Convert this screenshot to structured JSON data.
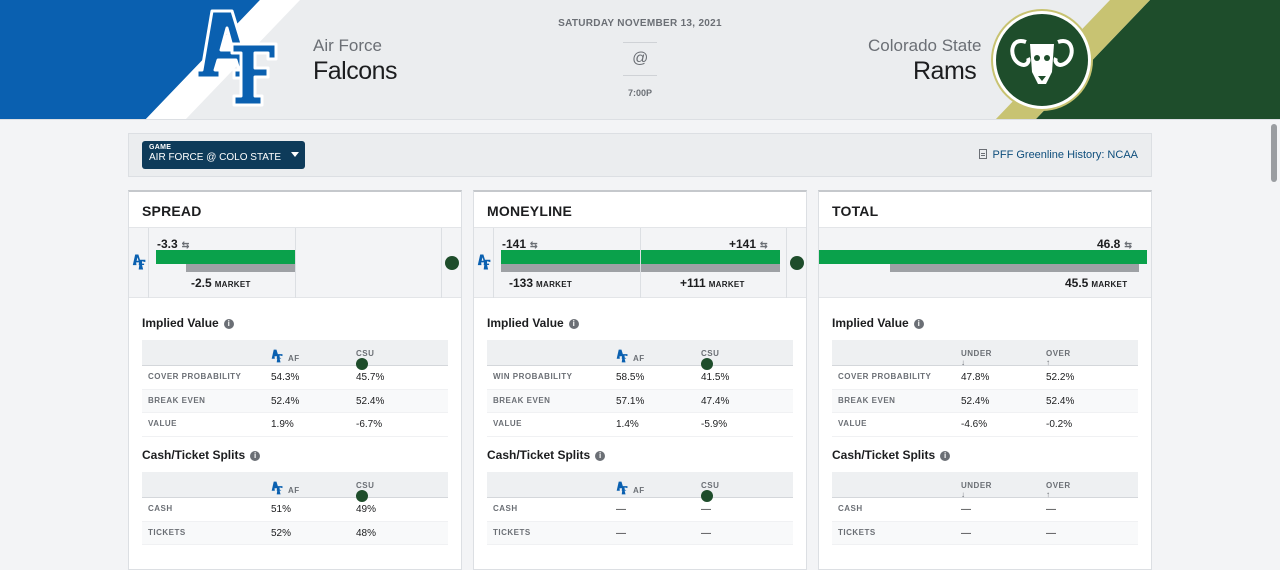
{
  "header": {
    "date": "SATURDAY NOVEMBER 13, 2021",
    "at": "@",
    "time": "7:00P",
    "away": {
      "city": "Air Force",
      "name": "Falcons"
    },
    "home": {
      "city": "Colorado State",
      "name": "Rams"
    },
    "colors": {
      "af_blue": "#0a60b0",
      "csu_green": "#1e4d2b",
      "csu_gold": "#c8c372"
    }
  },
  "toolbar": {
    "game_label": "GAME",
    "game_value": "AIR FORCE @ COLO STATE",
    "history_link": "PFF Greenline History: NCAA"
  },
  "panels": {
    "spread": {
      "title": "SPREAD",
      "line": "-3.3",
      "market": "-2.5",
      "market_label": "MARKET",
      "implied_title": "Implied Value",
      "col1": "AF",
      "col2": "CSU",
      "rows": [
        {
          "label": "COVER PROBABILITY",
          "v1": "54.3%",
          "v2": "45.7%"
        },
        {
          "label": "BREAK EVEN",
          "v1": "52.4%",
          "v2": "52.4%"
        },
        {
          "label": "VALUE",
          "v1": "1.9%",
          "v2": "-6.7%"
        }
      ],
      "splits_title": "Cash/Ticket Splits",
      "splits": [
        {
          "label": "CASH",
          "v1": "51%",
          "v2": "49%"
        },
        {
          "label": "TICKETS",
          "v1": "52%",
          "v2": "48%"
        }
      ]
    },
    "moneyline": {
      "title": "MONEYLINE",
      "line_away": "-141",
      "line_home": "+141",
      "market_away": "-133",
      "market_home": "+111",
      "market_label": "MARKET",
      "implied_title": "Implied Value",
      "col1": "AF",
      "col2": "CSU",
      "rows": [
        {
          "label": "WIN PROBABILITY",
          "v1": "58.5%",
          "v2": "41.5%"
        },
        {
          "label": "BREAK EVEN",
          "v1": "57.1%",
          "v2": "47.4%"
        },
        {
          "label": "VALUE",
          "v1": "1.4%",
          "v2": "-5.9%"
        }
      ],
      "splits_title": "Cash/Ticket Splits",
      "splits": [
        {
          "label": "CASH",
          "v1": "—",
          "v2": "—"
        },
        {
          "label": "TICKETS",
          "v1": "—",
          "v2": "—"
        }
      ]
    },
    "total": {
      "title": "TOTAL",
      "line": "46.8",
      "market": "45.5",
      "market_label": "MARKET",
      "implied_title": "Implied Value",
      "col1": "UNDER",
      "col2": "OVER",
      "rows": [
        {
          "label": "COVER PROBABILITY",
          "v1": "47.8%",
          "v2": "52.2%"
        },
        {
          "label": "BREAK EVEN",
          "v1": "52.4%",
          "v2": "52.4%"
        },
        {
          "label": "VALUE",
          "v1": "-4.6%",
          "v2": "-0.2%"
        }
      ],
      "splits_title": "Cash/Ticket Splits",
      "splits": [
        {
          "label": "CASH",
          "v1": "—",
          "v2": "—"
        },
        {
          "label": "TICKETS",
          "v1": "—",
          "v2": "—"
        }
      ]
    }
  }
}
